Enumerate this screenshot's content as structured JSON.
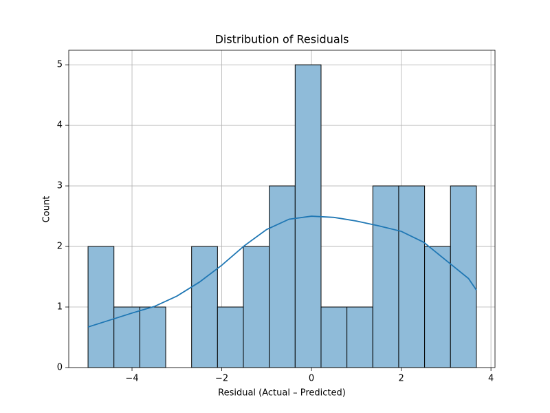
{
  "chart_data": {
    "type": "histogram",
    "title": "Distribution of Residuals",
    "x_label": "Residual (Actual – Predicted)",
    "y_label": "Count",
    "bins": [
      -4.98,
      -4.403,
      -3.826,
      -3.249,
      -2.672,
      -2.095,
      -1.518,
      -0.941,
      -0.364,
      0.213,
      0.79,
      1.367,
      1.944,
      2.521,
      3.098,
      3.675
    ],
    "counts": [
      2,
      1,
      1,
      0,
      2,
      1,
      2,
      3,
      5,
      1,
      1,
      3,
      3,
      2,
      3
    ],
    "color": "#8fbbd9",
    "edgecolor": "#000000",
    "kde": {
      "color": "#1f77b4",
      "x": [
        -4.98,
        -4.0,
        -3.5,
        -3.0,
        -2.5,
        -2.0,
        -1.5,
        -1.0,
        -0.5,
        0,
        0.5,
        1.0,
        1.5,
        2.0,
        2.5,
        3.0,
        3.5,
        3.675
      ],
      "values": [
        0.67,
        0.9,
        1.01,
        1.18,
        1.41,
        1.69,
        2.01,
        2.28,
        2.45,
        2.5,
        2.48,
        2.42,
        2.34,
        2.25,
        2.07,
        1.77,
        1.47,
        1.28
      ]
    },
    "xlim": [
      -5.41,
      4.09
    ],
    "ylim": [
      0,
      5.24
    ],
    "xticks": [
      {
        "value": -4,
        "label": "−4"
      },
      {
        "value": -2,
        "label": "−2"
      },
      0,
      2,
      4
    ],
    "yticks": [
      0,
      1,
      2,
      3,
      4,
      5
    ],
    "grid": true
  }
}
